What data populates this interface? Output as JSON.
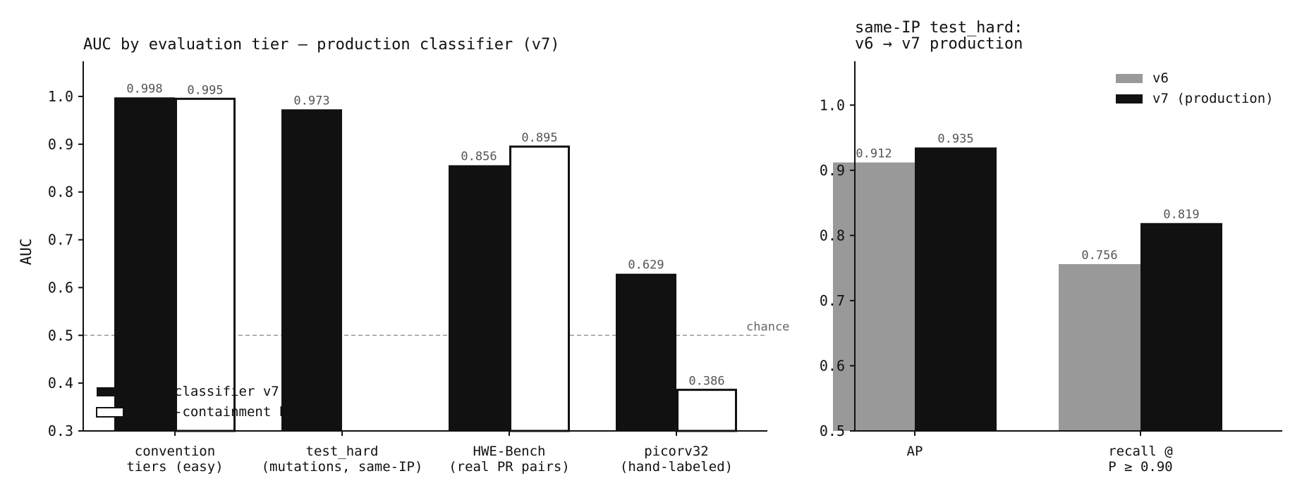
{
  "chart_data": [
    {
      "type": "bar",
      "title": "AUC by evaluation tier — production classifier (v7)",
      "ylabel": "AUC",
      "xlabel": "",
      "ylim": [
        0.3,
        1.05
      ],
      "yticks": [
        "0.3",
        "0.4",
        "0.5",
        "0.6",
        "0.7",
        "0.8",
        "0.9",
        "1.0"
      ],
      "categories": [
        [
          "convention",
          "tiers (easy)"
        ],
        [
          "test_hard",
          "(mutations, same-IP)"
        ],
        [
          "HWE-Bench",
          "(real PR pairs)"
        ],
        [
          "picorv32",
          "(hand-labeled)"
        ]
      ],
      "series": [
        {
          "name": "classifier v7",
          "color": "#111111",
          "style": "filled",
          "values": [
            0.998,
            0.973,
            0.856,
            0.629
          ],
          "labels": [
            "0.998",
            "0.973",
            "0.856",
            "0.629"
          ]
        },
        {
          "name": "-containment b",
          "color": "#ffffff",
          "style": "outline",
          "values": [
            0.995,
            null,
            0.895,
            0.386
          ],
          "labels": [
            "0.995",
            "",
            "0.895",
            "0.386"
          ]
        }
      ],
      "reference_line": {
        "value": 0.5,
        "label": "chance",
        "style": "dashed",
        "color": "#999999"
      },
      "legend_position": "bottom-left",
      "grid": false
    },
    {
      "type": "bar",
      "title": [
        "same-IP test_hard:",
        "v6 → v7 production"
      ],
      "ylabel": "",
      "xlabel": "",
      "ylim": [
        0.5,
        1.05
      ],
      "yticks": [
        "0.5",
        "0.6",
        "0.7",
        "0.8",
        "0.9",
        "1.0"
      ],
      "categories": [
        [
          "AP"
        ],
        [
          "recall @",
          "P ≥ 0.90"
        ]
      ],
      "series": [
        {
          "name": "v6",
          "color": "#999999",
          "style": "filled",
          "values": [
            0.912,
            0.756
          ],
          "labels": [
            "0.912",
            "0.756"
          ]
        },
        {
          "name": "v7 (production)",
          "color": "#111111",
          "style": "filled",
          "values": [
            0.935,
            0.819
          ],
          "labels": [
            "0.935",
            "0.819"
          ]
        }
      ],
      "legend_position": "top-right",
      "grid": false
    }
  ]
}
